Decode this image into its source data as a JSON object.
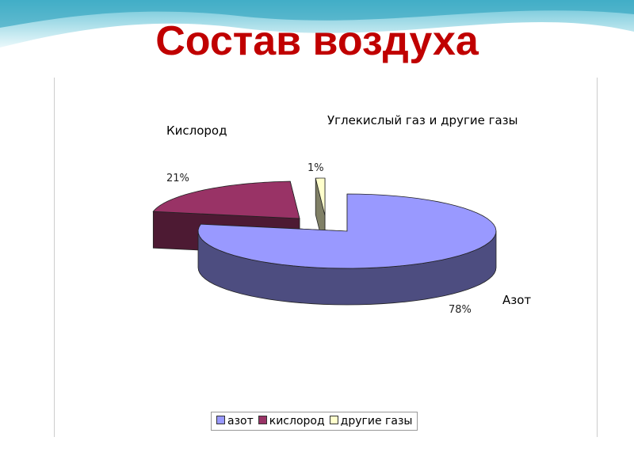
{
  "title": "Состав воздуха",
  "chart_data": {
    "type": "pie",
    "style": "3d-exploded",
    "title": "",
    "slices": [
      {
        "legend": "азот",
        "label": "Азот",
        "value": 78,
        "value_label": "78%",
        "color": "#9999ff",
        "side_color": "#4d4d80"
      },
      {
        "legend": "кислород",
        "label": "Кислород",
        "value": 21,
        "value_label": "21%",
        "color": "#993366",
        "side_color": "#4d1a33"
      },
      {
        "legend": "другие газы",
        "label": "Углекислый газ и другие газы",
        "value": 1,
        "value_label": "1%",
        "color": "#ffffcc",
        "side_color": "#808066"
      }
    ],
    "legend_position": "bottom"
  },
  "colors": {
    "title": "#c00000",
    "wave": "#5fc3d6"
  }
}
